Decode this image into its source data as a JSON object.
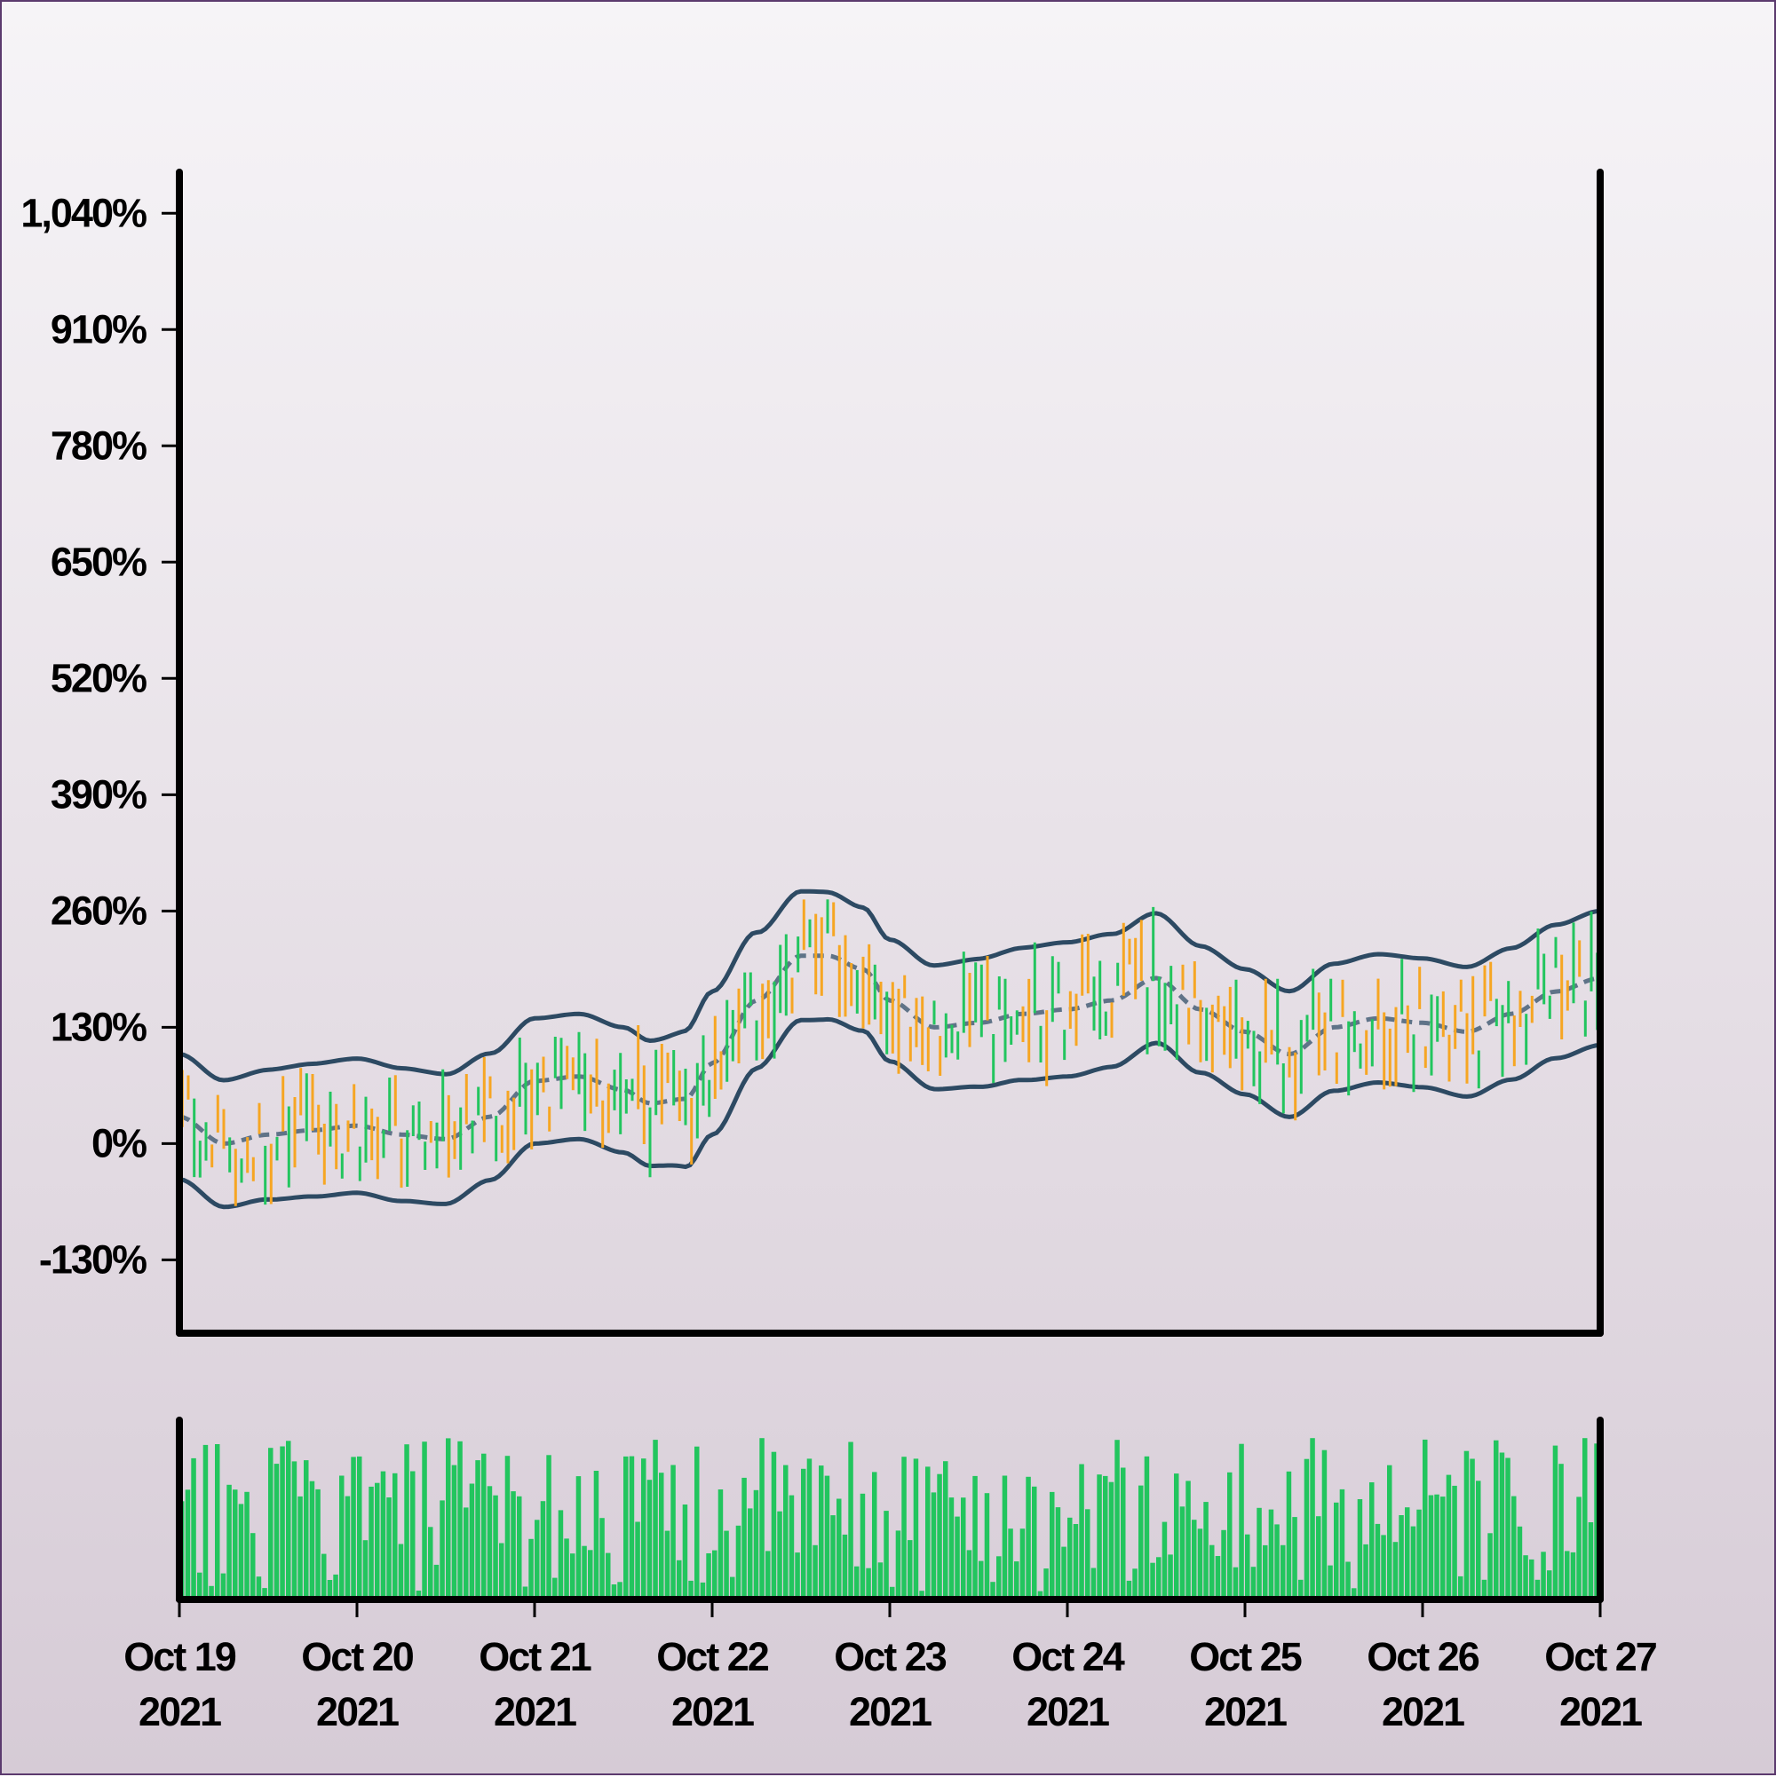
{
  "chart_data": [
    {
      "type": "ohlc",
      "panel": "price",
      "title": "",
      "xlabel": "",
      "ylabel": "",
      "yaxis": {
        "ticks": [
          -130,
          0,
          130,
          260,
          390,
          520,
          650,
          780,
          910,
          1040
        ],
        "tick_labels": [
          "-130%",
          "0%",
          "130%",
          "260%",
          "390%",
          "520%",
          "650%",
          "780%",
          "910%",
          "1,040%"
        ],
        "range": [
          -212,
          1083
        ]
      },
      "xaxis": {
        "start": "2021-10-19",
        "end": "2021-10-27",
        "ticks": [
          {
            "date": "2021-10-19",
            "line1": "Oct 19",
            "line2": "2021"
          },
          {
            "date": "2021-10-20",
            "line1": "Oct 20",
            "line2": "2021"
          },
          {
            "date": "2021-10-21",
            "line1": "Oct 21",
            "line2": "2021"
          },
          {
            "date": "2021-10-22",
            "line1": "Oct 22",
            "line2": "2021"
          },
          {
            "date": "2021-10-23",
            "line1": "Oct 23",
            "line2": "2021"
          },
          {
            "date": "2021-10-24",
            "line1": "Oct 24",
            "line2": "2021"
          },
          {
            "date": "2021-10-25",
            "line1": "Oct 25",
            "line2": "2021"
          },
          {
            "date": "2021-10-26",
            "line1": "Oct 26",
            "line2": "2021"
          },
          {
            "date": "2021-10-27",
            "line1": "Oct 27",
            "line2": "2021"
          }
        ]
      },
      "grid": false,
      "overlays": {
        "type": "bollinger_bands",
        "middle_style": "dashed",
        "anchors": [
          {
            "t": 0.0,
            "mid": 30
          },
          {
            "t": 0.25,
            "mid": 0
          },
          {
            "t": 0.5,
            "mid": 10
          },
          {
            "t": 0.75,
            "mid": 15
          },
          {
            "t": 1.0,
            "mid": 20
          },
          {
            "t": 1.25,
            "mid": 10
          },
          {
            "t": 1.5,
            "mid": 5
          },
          {
            "t": 1.75,
            "mid": 30
          },
          {
            "t": 2.0,
            "mid": 70
          },
          {
            "t": 2.25,
            "mid": 75
          },
          {
            "t": 2.5,
            "mid": 60
          },
          {
            "t": 2.65,
            "mid": 45
          },
          {
            "t": 2.85,
            "mid": 50
          },
          {
            "t": 3.0,
            "mid": 90
          },
          {
            "t": 3.25,
            "mid": 160
          },
          {
            "t": 3.5,
            "mid": 210
          },
          {
            "t": 3.65,
            "mid": 210
          },
          {
            "t": 3.85,
            "mid": 195
          },
          {
            "t": 4.0,
            "mid": 160
          },
          {
            "t": 4.25,
            "mid": 130
          },
          {
            "t": 4.5,
            "mid": 135
          },
          {
            "t": 4.75,
            "mid": 145
          },
          {
            "t": 5.0,
            "mid": 150
          },
          {
            "t": 5.25,
            "mid": 160
          },
          {
            "t": 5.5,
            "mid": 185
          },
          {
            "t": 5.75,
            "mid": 150
          },
          {
            "t": 6.0,
            "mid": 125
          },
          {
            "t": 6.25,
            "mid": 100
          },
          {
            "t": 6.5,
            "mid": 130
          },
          {
            "t": 6.75,
            "mid": 140
          },
          {
            "t": 7.0,
            "mid": 135
          },
          {
            "t": 7.25,
            "mid": 125
          },
          {
            "t": 7.5,
            "mid": 145
          },
          {
            "t": 7.75,
            "mid": 170
          },
          {
            "t": 8.0,
            "mid": 185
          }
        ],
        "band_width": [
          {
            "t": 0.0,
            "w": 70
          },
          {
            "t": 1.0,
            "w": 75
          },
          {
            "t": 2.0,
            "w": 70
          },
          {
            "t": 2.65,
            "w": 70
          },
          {
            "t": 3.0,
            "w": 80
          },
          {
            "t": 3.5,
            "w": 72
          },
          {
            "t": 4.0,
            "w": 68
          },
          {
            "t": 5.0,
            "w": 75
          },
          {
            "t": 6.0,
            "w": 70
          },
          {
            "t": 7.0,
            "w": 72
          },
          {
            "t": 8.0,
            "w": 75
          }
        ]
      },
      "candles": {
        "count": 240,
        "body_half_range": 25,
        "colors": {
          "up": "#22c55e",
          "down": "#f6a623"
        }
      }
    },
    {
      "type": "bar",
      "panel": "volume",
      "title": "",
      "bar_count": 240,
      "color": "#22c55e",
      "relative_range": [
        0.05,
        1.0
      ]
    }
  ],
  "style": {
    "band_color": "#2d4a63",
    "mid_color": "#5f7388",
    "axis_color": "#000000",
    "up_color": "#22c55e",
    "down_color": "#f6a623",
    "volume_color": "#22c55e"
  }
}
